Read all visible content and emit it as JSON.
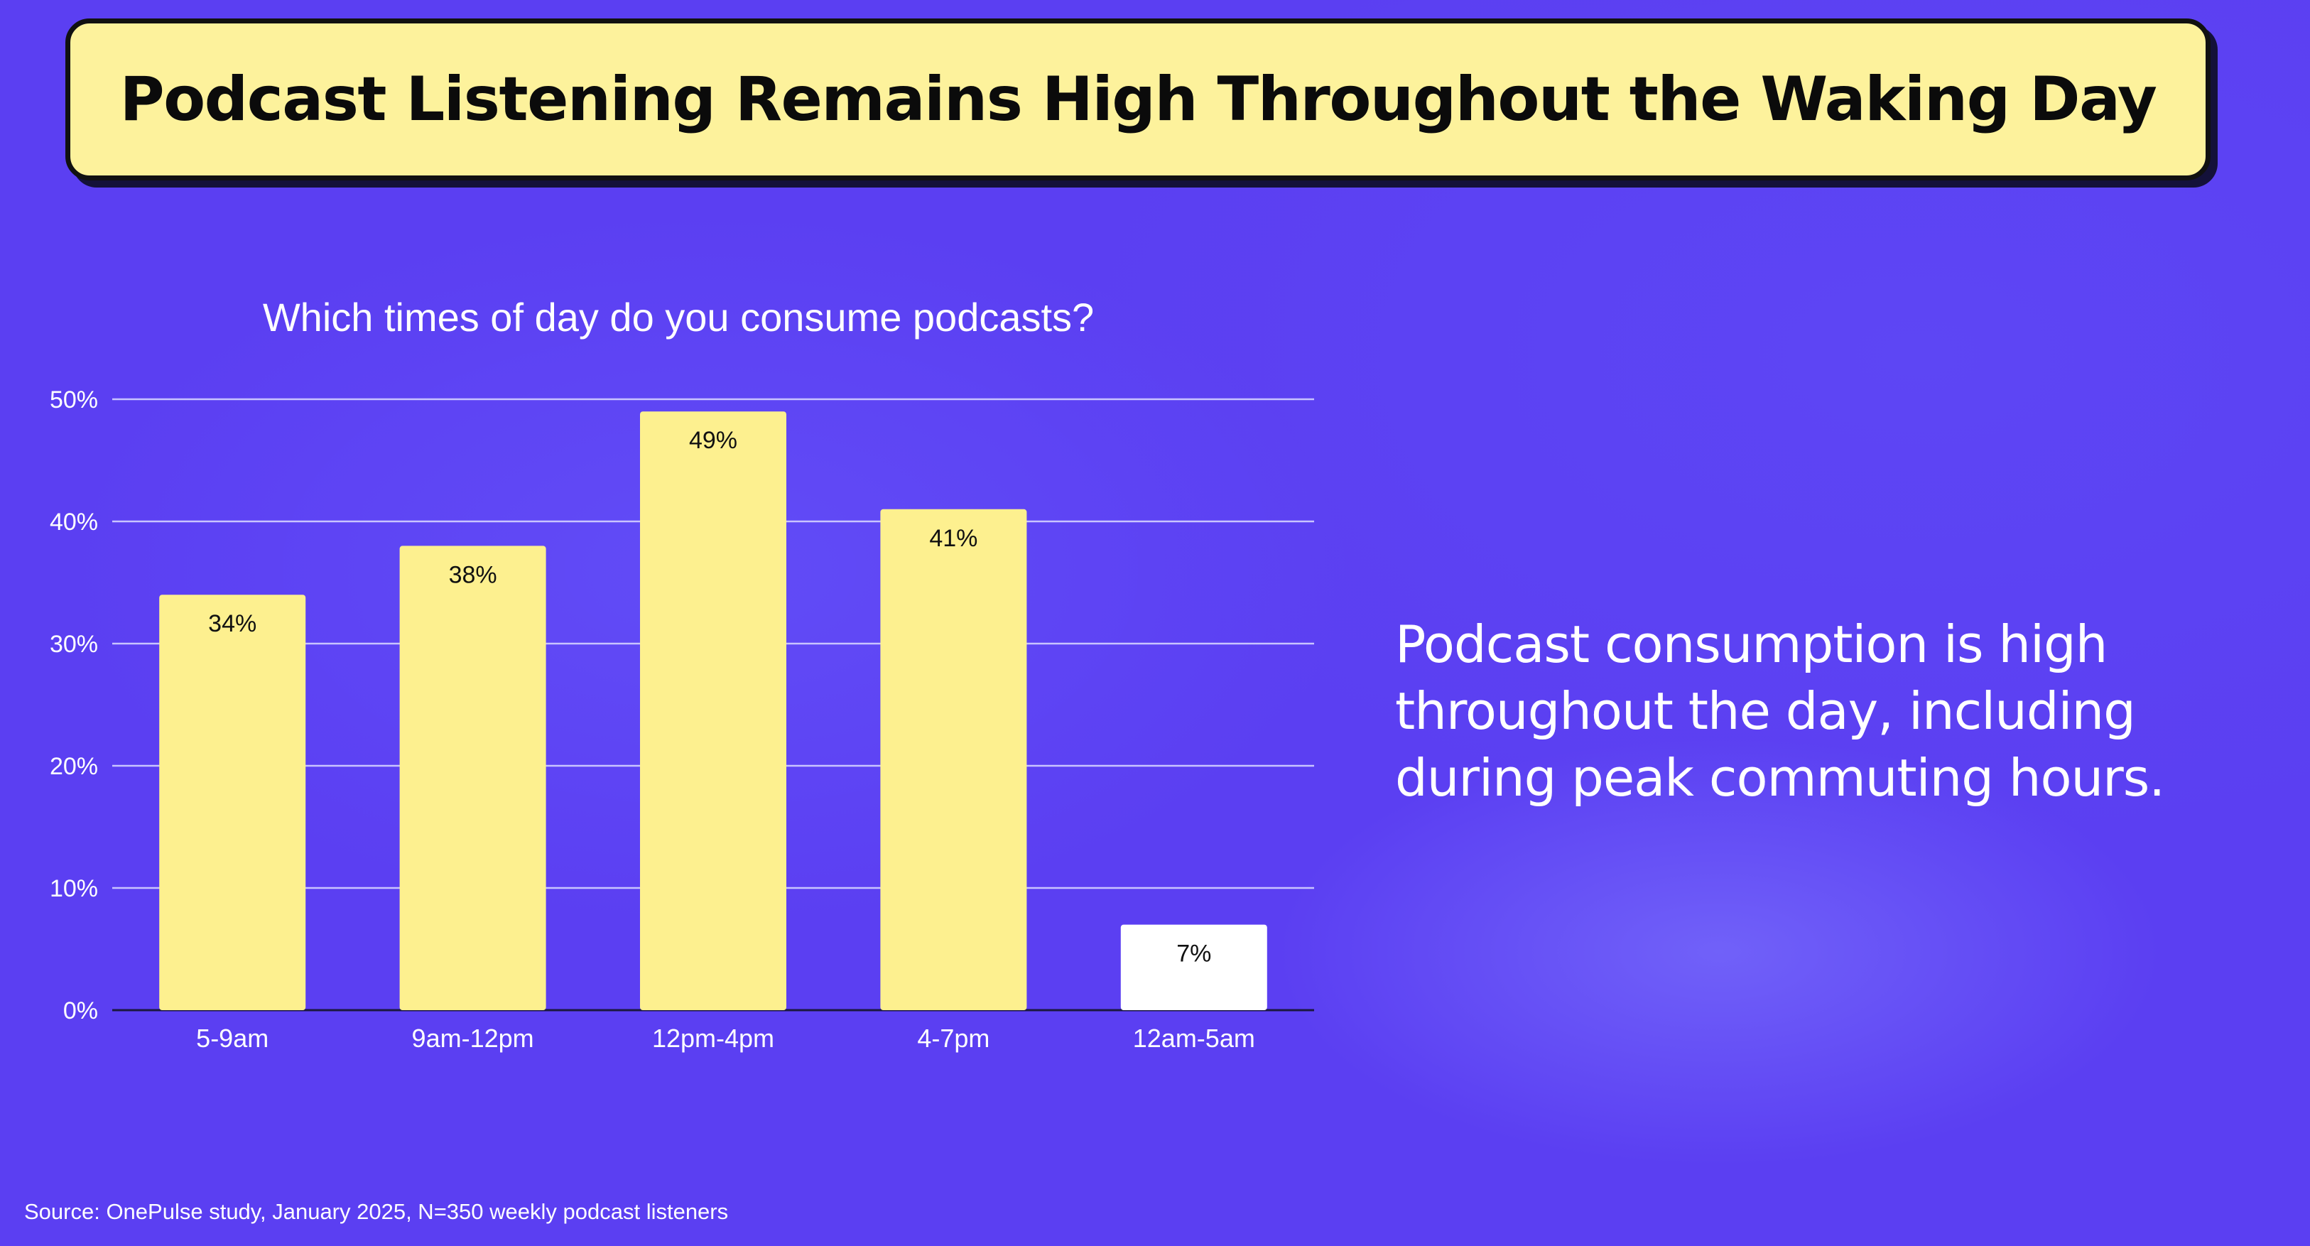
{
  "slide": {
    "title": "Podcast Listening Remains High Throughout the Waking Day",
    "callout": "Podcast consumption is high throughout the day, including during peak commuting hours.",
    "source": "Source: OnePulse study, January 2025, N=350 weekly podcast listeners"
  },
  "colors": {
    "background": "#5b3ff2",
    "banner_fill": "#fdf29c",
    "bar_highlight": "#fdf08f",
    "bar_muted": "#ffffff",
    "gridline": "#c9c4ff",
    "axis_text": "#ffffff",
    "bar_label_text": "#111111"
  },
  "chart_data": {
    "type": "bar",
    "title": "Which times of day do you consume podcasts?",
    "xlabel": "",
    "ylabel": "",
    "categories": [
      "5-9am",
      "9am-12pm",
      "12pm-4pm",
      "4-7pm",
      "12am-5am"
    ],
    "values": [
      34,
      38,
      49,
      41,
      7
    ],
    "value_labels": [
      "34%",
      "38%",
      "49%",
      "41%",
      "7%"
    ],
    "bar_colors": [
      "#fdf08f",
      "#fdf08f",
      "#fdf08f",
      "#fdf08f",
      "#ffffff"
    ],
    "ylim": [
      0,
      50
    ],
    "yticks": [
      0,
      10,
      20,
      30,
      40,
      50
    ],
    "ytick_labels": [
      "0%",
      "10%",
      "20%",
      "30%",
      "40%",
      "50%"
    ],
    "grid": true,
    "legend": "none"
  }
}
